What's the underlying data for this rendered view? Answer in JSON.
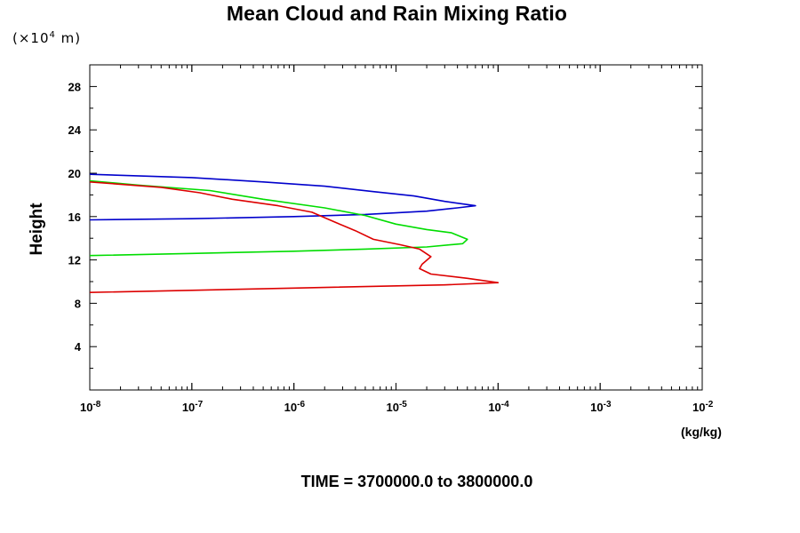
{
  "chart_data": {
    "type": "line",
    "title": "Mean Cloud and Rain Mixing Ratio",
    "ylabel": "Height",
    "y_unit": {
      "prefix": "(×10",
      "exponent": "4",
      "suffix": " m)"
    },
    "xlabel_unit": "(kg/kg)",
    "footer": "TIME = 3700000.0 to 3800000.0",
    "x_scale": "log",
    "xlim": [
      1e-08,
      0.01
    ],
    "ylim": [
      0,
      30
    ],
    "grid": false,
    "x_ticks": [
      {
        "value": 1e-08,
        "base": "10",
        "exp": "-8"
      },
      {
        "value": 1e-07,
        "base": "10",
        "exp": "-7"
      },
      {
        "value": 1e-06,
        "base": "10",
        "exp": "-6"
      },
      {
        "value": 1e-05,
        "base": "10",
        "exp": "-5"
      },
      {
        "value": 0.0001,
        "base": "10",
        "exp": "-4"
      },
      {
        "value": 0.001,
        "base": "10",
        "exp": "-3"
      },
      {
        "value": 0.01,
        "base": "10",
        "exp": "-2"
      }
    ],
    "y_ticks": [
      {
        "value": 4,
        "label": "4"
      },
      {
        "value": 8,
        "label": "8"
      },
      {
        "value": 12,
        "label": "12"
      },
      {
        "value": 16,
        "label": "16"
      },
      {
        "value": 20,
        "label": "20"
      },
      {
        "value": 24,
        "label": "24"
      },
      {
        "value": 28,
        "label": "28"
      }
    ],
    "series": [
      {
        "color": "#0000cc",
        "points": [
          [
            1e-08,
            19.9
          ],
          [
            1e-07,
            19.6
          ],
          [
            5e-07,
            19.2
          ],
          [
            2e-06,
            18.8
          ],
          [
            6e-06,
            18.3
          ],
          [
            1.5e-05,
            17.9
          ],
          [
            3e-05,
            17.4
          ],
          [
            6e-05,
            17.0
          ],
          [
            4e-05,
            16.8
          ],
          [
            2e-05,
            16.5
          ],
          [
            5e-06,
            16.2
          ],
          [
            1e-06,
            16.0
          ],
          [
            1e-07,
            15.8
          ],
          [
            1e-08,
            15.7
          ]
        ]
      },
      {
        "color": "#00dd00",
        "points": [
          [
            1e-08,
            19.3
          ],
          [
            3e-08,
            18.9
          ],
          [
            1.5e-07,
            18.4
          ],
          [
            5e-07,
            17.6
          ],
          [
            2e-06,
            16.8
          ],
          [
            5e-06,
            16.1
          ],
          [
            1e-05,
            15.3
          ],
          [
            2e-05,
            14.8
          ],
          [
            3.5e-05,
            14.5
          ],
          [
            5e-05,
            13.9
          ],
          [
            4.5e-05,
            13.5
          ],
          [
            2e-05,
            13.2
          ],
          [
            5e-06,
            13.0
          ],
          [
            1e-06,
            12.8
          ],
          [
            1e-07,
            12.6
          ],
          [
            1e-08,
            12.4
          ]
        ]
      },
      {
        "color": "#dd0000",
        "points": [
          [
            1e-08,
            19.2
          ],
          [
            5e-08,
            18.7
          ],
          [
            1.2e-07,
            18.2
          ],
          [
            2.5e-07,
            17.6
          ],
          [
            7e-07,
            17.0
          ],
          [
            1.5e-06,
            16.4
          ],
          [
            2.5e-06,
            15.5
          ],
          [
            4e-06,
            14.7
          ],
          [
            6e-06,
            13.9
          ],
          [
            1.1e-05,
            13.4
          ],
          [
            1.7e-05,
            13.0
          ],
          [
            2.2e-05,
            12.3
          ],
          [
            1.8e-05,
            11.6
          ],
          [
            1.7e-05,
            11.2
          ],
          [
            2.2e-05,
            10.7
          ],
          [
            5e-05,
            10.3
          ],
          [
            0.0001,
            9.9
          ],
          [
            3e-05,
            9.7
          ],
          [
            1e-06,
            9.4
          ],
          [
            1e-07,
            9.2
          ],
          [
            1e-08,
            9.0
          ]
        ]
      }
    ]
  }
}
